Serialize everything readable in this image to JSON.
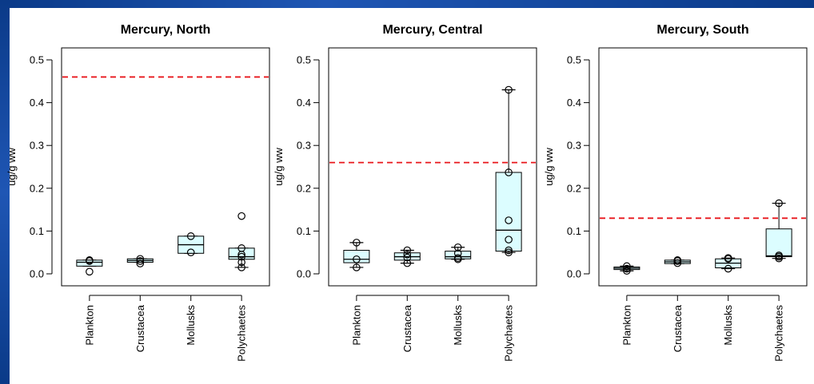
{
  "chart_data": [
    {
      "type": "boxplot",
      "title": "Mercury, North",
      "ylabel": "ug/g ww",
      "xlabel": "",
      "ylim": [
        0,
        0.5
      ],
      "yticks": [
        "0.0",
        "0.1",
        "0.2",
        "0.3",
        "0.4",
        "0.5"
      ],
      "threshold": 0.46,
      "categories": [
        "Plankton",
        "Crustacea",
        "Mollusks",
        "Polychaetes"
      ],
      "boxes": [
        {
          "q1": 0.018,
          "median": 0.027,
          "q3": 0.032,
          "whisker_low": 0.018,
          "whisker_high": 0.032,
          "points": [
            0.005,
            0.03,
            0.032
          ]
        },
        {
          "q1": 0.027,
          "median": 0.031,
          "q3": 0.035,
          "whisker_low": 0.027,
          "whisker_high": 0.035,
          "points": [
            0.024,
            0.03,
            0.035
          ]
        },
        {
          "q1": 0.048,
          "median": 0.068,
          "q3": 0.088,
          "whisker_low": 0.048,
          "whisker_high": 0.088,
          "points": [
            0.05,
            0.088
          ]
        },
        {
          "q1": 0.034,
          "median": 0.04,
          "q3": 0.06,
          "whisker_low": 0.015,
          "whisker_high": 0.06,
          "points": [
            0.015,
            0.027,
            0.04,
            0.045,
            0.06,
            0.135
          ]
        }
      ],
      "grid": false
    },
    {
      "type": "boxplot",
      "title": "Mercury, Central",
      "ylabel": "ug/g ww",
      "xlabel": "",
      "ylim": [
        0,
        0.5
      ],
      "yticks": [
        "0.0",
        "0.1",
        "0.2",
        "0.3",
        "0.4",
        "0.5"
      ],
      "threshold": 0.26,
      "categories": [
        "Plankton",
        "Crustacea",
        "Mollusks",
        "Polychaetes"
      ],
      "boxes": [
        {
          "q1": 0.026,
          "median": 0.034,
          "q3": 0.055,
          "whisker_low": 0.015,
          "whisker_high": 0.073,
          "points": [
            0.015,
            0.034,
            0.073
          ]
        },
        {
          "q1": 0.032,
          "median": 0.04,
          "q3": 0.049,
          "whisker_low": 0.025,
          "whisker_high": 0.055,
          "points": [
            0.025,
            0.038,
            0.045,
            0.055
          ]
        },
        {
          "q1": 0.035,
          "median": 0.04,
          "q3": 0.053,
          "whisker_low": 0.034,
          "whisker_high": 0.062,
          "points": [
            0.034,
            0.037,
            0.048,
            0.062
          ]
        },
        {
          "q1": 0.053,
          "median": 0.102,
          "q3": 0.237,
          "whisker_low": 0.05,
          "whisker_high": 0.43,
          "points": [
            0.05,
            0.055,
            0.08,
            0.125,
            0.237,
            0.43
          ]
        }
      ],
      "grid": false
    },
    {
      "type": "boxplot",
      "title": "Mercury, South",
      "ylabel": "ug/g ww",
      "xlabel": "",
      "ylim": [
        0,
        0.5
      ],
      "yticks": [
        "0.0",
        "0.1",
        "0.2",
        "0.3",
        "0.4",
        "0.5"
      ],
      "threshold": 0.13,
      "categories": [
        "Plankton",
        "Crustacea",
        "Mollusks",
        "Polychaetes"
      ],
      "boxes": [
        {
          "q1": 0.01,
          "median": 0.013,
          "q3": 0.016,
          "whisker_low": 0.007,
          "whisker_high": 0.018,
          "points": [
            0.007,
            0.012,
            0.018
          ]
        },
        {
          "q1": 0.024,
          "median": 0.028,
          "q3": 0.032,
          "whisker_low": 0.024,
          "whisker_high": 0.032,
          "points": [
            0.025,
            0.03,
            0.032
          ]
        },
        {
          "q1": 0.014,
          "median": 0.025,
          "q3": 0.035,
          "whisker_low": 0.012,
          "whisker_high": 0.037,
          "points": [
            0.012,
            0.035,
            0.037
          ]
        },
        {
          "q1": 0.04,
          "median": 0.042,
          "q3": 0.105,
          "whisker_low": 0.036,
          "whisker_high": 0.165,
          "points": [
            0.036,
            0.04,
            0.043,
            0.165
          ]
        }
      ],
      "grid": false
    }
  ],
  "colors": {
    "box_fill": "#dcfdff",
    "threshold": "#e8161b",
    "frame": "#1a4aa0"
  }
}
